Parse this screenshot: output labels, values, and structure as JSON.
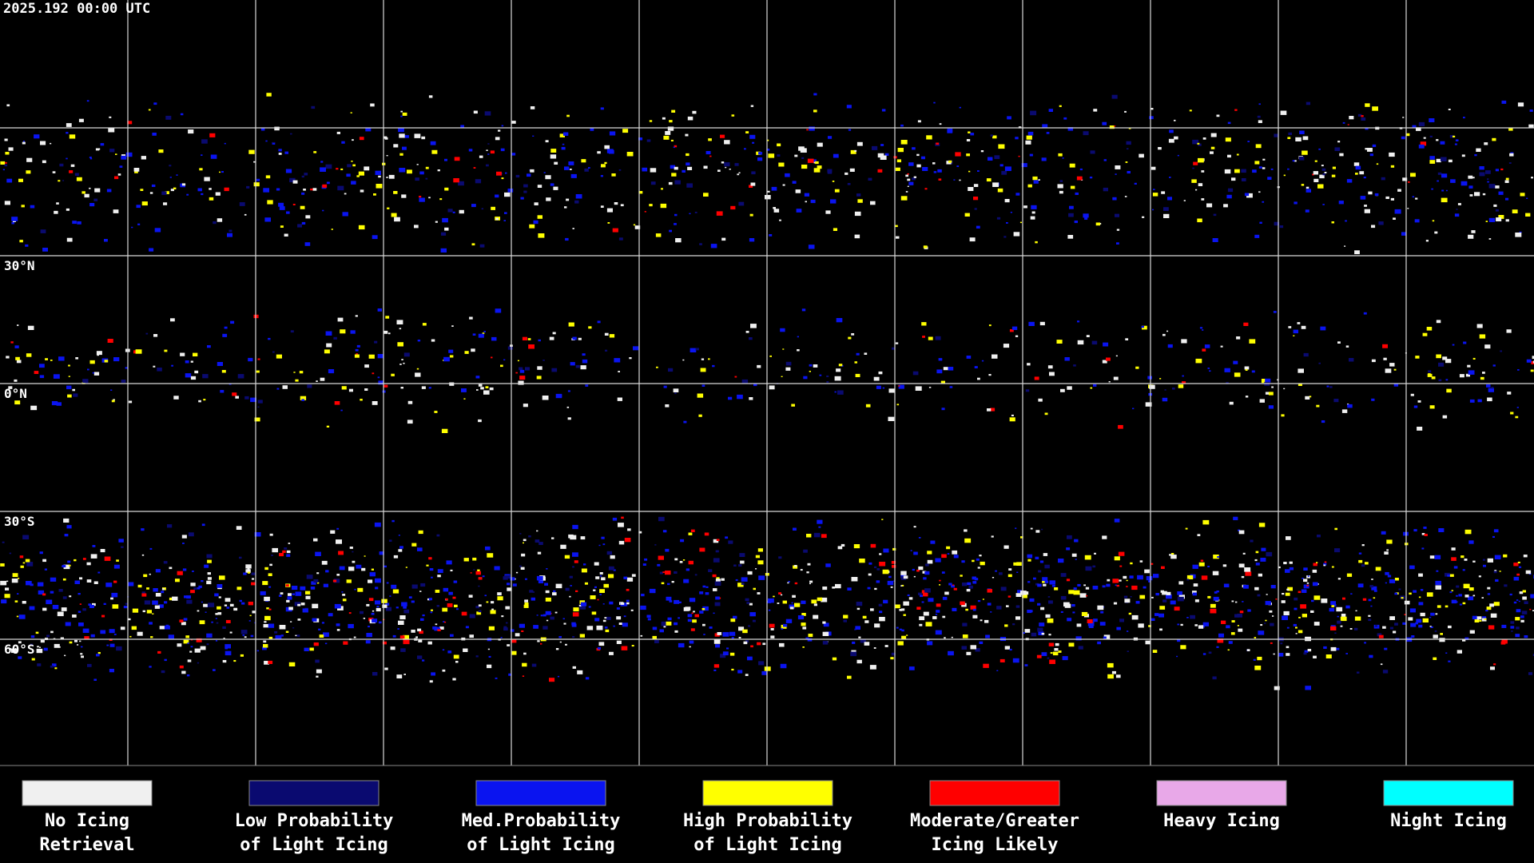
{
  "header": {
    "timestamp": "2025.192 00:00 UTC"
  },
  "map": {
    "latitude_labels": [
      "30°N",
      "0°N",
      "30°S",
      "60°S"
    ]
  },
  "legend": [
    {
      "color": "#f0f0f0",
      "lines": [
        "No Icing",
        "Retrieval"
      ]
    },
    {
      "color": "#0a0a70",
      "lines": [
        "Low Probability",
        "of Light Icing"
      ]
    },
    {
      "color": "#0a14f0",
      "lines": [
        "Med.Probability",
        "of Light Icing"
      ]
    },
    {
      "color": "#ffff00",
      "lines": [
        "High Probability",
        "of Light Icing"
      ]
    },
    {
      "color": "#ff0000",
      "lines": [
        "Moderate/Greater",
        "Icing Likely"
      ]
    },
    {
      "color": "#e8a8e8",
      "lines": [
        "Heavy Icing"
      ]
    },
    {
      "color": "#00ffff",
      "lines": [
        "Night Icing"
      ]
    }
  ]
}
